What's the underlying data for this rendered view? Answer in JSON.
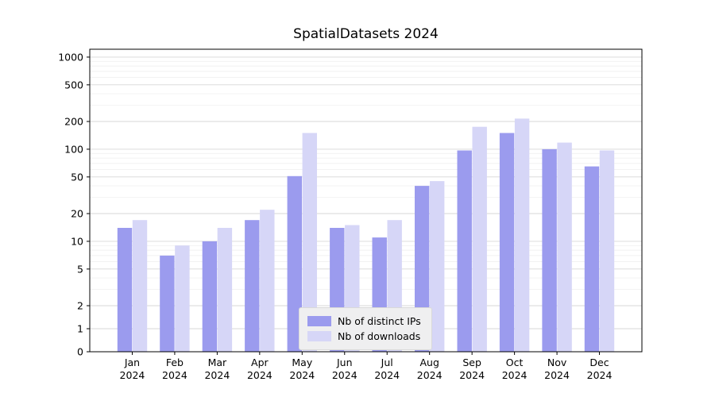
{
  "chart_data": {
    "type": "bar",
    "title": "SpatialDatasets 2024",
    "categories": [
      "Jan",
      "Feb",
      "Mar",
      "Apr",
      "May",
      "Jun",
      "Jul",
      "Aug",
      "Sep",
      "Oct",
      "Nov",
      "Dec"
    ],
    "x_year": "2024",
    "series": [
      {
        "name": "Nb of distinct IPs",
        "color": "#9b9bee",
        "values": [
          14,
          7,
          10,
          17,
          51,
          14,
          11,
          40,
          97,
          150,
          100,
          65
        ]
      },
      {
        "name": "Nb of downloads",
        "color": "#d6d6f7",
        "values": [
          17,
          9,
          14,
          22,
          150,
          15,
          17,
          45,
          175,
          215,
          118,
          97
        ]
      }
    ],
    "yscale": "symlog",
    "yticks": [
      0,
      1,
      2,
      5,
      10,
      20,
      50,
      100,
      200,
      500,
      1000
    ],
    "y_minor_gridlines": [
      3,
      4,
      6,
      7,
      8,
      9,
      30,
      40,
      60,
      70,
      80,
      90,
      300,
      400,
      600,
      700,
      800,
      900
    ],
    "ylim": [
      0,
      1200
    ],
    "grid": true,
    "legend_position": "lower center",
    "colors": {
      "major_grid": "#d7d7d7",
      "minor_grid": "#ededed",
      "axis": "#000000",
      "text": "#000000"
    }
  }
}
